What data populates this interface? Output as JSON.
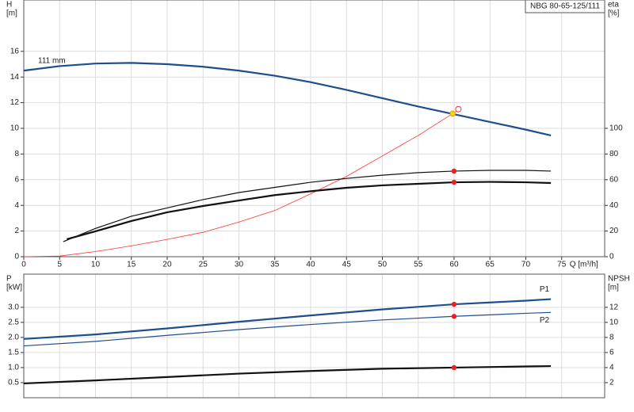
{
  "chart_data": [
    {
      "type": "line",
      "title": "NBG 80-65-125/111",
      "ylabel": [
        "H",
        "[m]"
      ],
      "y2label": [
        "eta",
        "[%]"
      ],
      "xlabel": "Q [m³/h]",
      "xlim": [
        0,
        81
      ],
      "xticks": [
        0,
        5,
        10,
        15,
        20,
        25,
        30,
        35,
        40,
        45,
        50,
        55,
        60,
        65,
        70,
        75
      ],
      "ylim": [
        0,
        20
      ],
      "yticks": [
        0,
        2,
        4,
        6,
        8,
        10,
        12,
        14,
        16
      ],
      "y2lim": [
        0,
        200
      ],
      "y2ticks": [
        0,
        20,
        40,
        60,
        80,
        100
      ],
      "grid": true,
      "series": [
        {
          "name": "111 mm",
          "color": "#1f4e8c",
          "style": "thick",
          "label_at": "start",
          "label_side": "above",
          "x": [
            0,
            5,
            10,
            15,
            20,
            25,
            30,
            35,
            40,
            45,
            50,
            55,
            60,
            65,
            70,
            73.5
          ],
          "values": [
            14.5,
            14.85,
            15.05,
            15.1,
            15.0,
            14.8,
            14.5,
            14.1,
            13.6,
            13.0,
            12.35,
            11.7,
            11.1,
            10.5,
            9.9,
            9.45
          ]
        },
        {
          "color": "#ff3030",
          "style": "hair",
          "x": [
            0,
            5,
            10,
            15,
            20,
            25,
            30,
            35,
            40,
            45,
            50,
            55,
            60.5
          ],
          "values": [
            0,
            0.05,
            0.4,
            0.85,
            1.35,
            1.9,
            2.7,
            3.6,
            4.9,
            6.26,
            7.85,
            9.45,
            11.4
          ]
        },
        {
          "color": "#111111",
          "style": "thin",
          "axis": "y2",
          "x": [
            5.5,
            10,
            15,
            20,
            25,
            30,
            35,
            40,
            45,
            50,
            55,
            60,
            65,
            70,
            73.5
          ],
          "values": [
            11.7,
            22,
            31.5,
            38,
            44.5,
            50,
            54,
            58,
            61,
            63.5,
            65.5,
            66.7,
            67.3,
            67.3,
            66.7
          ]
        },
        {
          "color": "#111111",
          "style": "thick",
          "axis": "y2",
          "x": [
            6,
            10,
            15,
            20,
            25,
            30,
            35,
            40,
            45,
            50,
            55,
            60,
            65,
            70,
            73.5
          ],
          "values": [
            13.6,
            19.8,
            27.8,
            34.6,
            39.5,
            43.8,
            48,
            51,
            53.7,
            55.6,
            56.8,
            58,
            58.3,
            58,
            57.4
          ]
        },
        {
          "color": "#e8201f",
          "style": "dot",
          "axis": "y2",
          "x": [
            60
          ],
          "values": [
            66.7
          ]
        },
        {
          "color": "#e8201f",
          "style": "dot",
          "axis": "y2",
          "x": [
            60
          ],
          "values": [
            58
          ]
        },
        {
          "color": "#ff3030",
          "style": "ring",
          "x": [
            60.6
          ],
          "values": [
            11.5
          ]
        },
        {
          "color": "#ffd21f",
          "style": "dot",
          "x": [
            59.8
          ],
          "values": [
            11.15
          ]
        }
      ]
    },
    {
      "type": "line",
      "ylabel": [
        "P",
        "[kW]"
      ],
      "y2label": [
        "NPSH",
        "[m]"
      ],
      "xlim": [
        0,
        81
      ],
      "ylim": [
        0,
        4.1
      ],
      "yticks": [
        {
          "value": 0.5,
          "label": "0.5"
        },
        {
          "value": 1,
          "label": "1.0"
        },
        {
          "value": 1.5,
          "label": "1.5"
        },
        {
          "value": 2,
          "label": "2.0"
        },
        {
          "value": 2.5,
          "label": "2.5"
        },
        {
          "value": 3,
          "label": "3.0"
        }
      ],
      "y2lim": [
        0,
        16.4
      ],
      "y2ticks": [
        2,
        4,
        6,
        8,
        10,
        12
      ],
      "grid": true,
      "series": [
        {
          "name": "P1",
          "color": "#1f4e8c",
          "style": "thick",
          "label_at": "end",
          "label_side": "above",
          "x": [
            0,
            10,
            20,
            30,
            40,
            50,
            60,
            70,
            73.5
          ],
          "values": [
            1.95,
            2.1,
            2.3,
            2.52,
            2.73,
            2.93,
            3.1,
            3.22,
            3.27
          ]
        },
        {
          "name": "P2",
          "color": "#1f4e8c",
          "style": "thin",
          "label_at": "end",
          "label_side": "below",
          "x": [
            0,
            10,
            20,
            30,
            40,
            50,
            60,
            70,
            73.5
          ],
          "values": [
            1.72,
            1.87,
            2.07,
            2.26,
            2.43,
            2.58,
            2.7,
            2.8,
            2.83
          ]
        },
        {
          "color": "#111111",
          "style": "thick",
          "axis": "y2",
          "x": [
            0,
            10,
            20,
            30,
            40,
            50,
            60,
            70,
            73.5
          ],
          "values": [
            1.9,
            2.3,
            2.75,
            3.2,
            3.55,
            3.85,
            4.0,
            4.15,
            4.2
          ]
        },
        {
          "color": "#e8201f",
          "style": "dot",
          "x": [
            60
          ],
          "values": [
            3.1
          ]
        },
        {
          "color": "#e8201f",
          "style": "dot",
          "x": [
            60
          ],
          "values": [
            2.7
          ]
        },
        {
          "color": "#e8201f",
          "style": "dot",
          "axis": "y2",
          "x": [
            60
          ],
          "values": [
            4.0
          ]
        }
      ]
    }
  ]
}
